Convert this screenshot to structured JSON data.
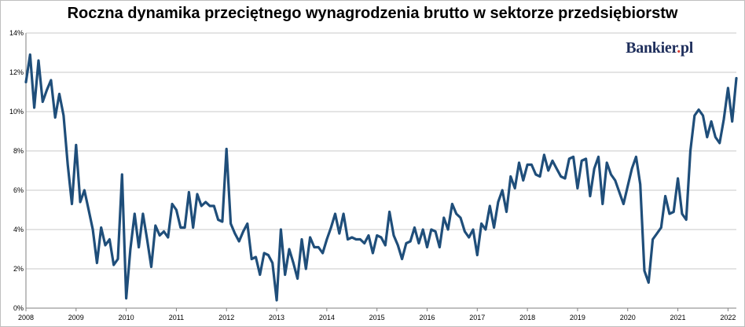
{
  "title": "Roczna dynamika przeciętnego wynagrodzenia brutto w sektorze przedsiębiorstw",
  "brand": {
    "name": "Bankier",
    "dot": ".",
    "suffix": "pl"
  },
  "colors": {
    "line": "#1f4e7a",
    "grid": "#c8c8c8",
    "axis": "#808080"
  },
  "chart_data": {
    "type": "line",
    "title": "Roczna dynamika przeciętnego wynagrodzenia brutto w sektorze przedsiębiorstw",
    "xlabel": "",
    "ylabel": "",
    "ylim": [
      0,
      14
    ],
    "xlim": [
      "2008-01",
      "2022-03"
    ],
    "y_ticks": [
      "0%",
      "2%",
      "4%",
      "6%",
      "8%",
      "10%",
      "12%",
      "14%"
    ],
    "x_ticks": [
      "2008",
      "2009",
      "2010",
      "2011",
      "2012",
      "2013",
      "2014",
      "2015",
      "2016",
      "2017",
      "2018",
      "2019",
      "2020",
      "2021",
      "2022"
    ],
    "grid": true,
    "legend": "none",
    "x_start": "2008-01",
    "frequency": "monthly",
    "series": [
      {
        "values": [
          11.5,
          12.9,
          10.2,
          12.6,
          10.5,
          11.1,
          11.6,
          9.7,
          10.9,
          9.8,
          7.3,
          5.3,
          8.3,
          5.4,
          6.0,
          5.0,
          4.0,
          2.3,
          4.1,
          3.2,
          3.5,
          2.2,
          2.5,
          6.8,
          0.5,
          3.0,
          4.8,
          3.1,
          4.8,
          3.5,
          2.1,
          4.2,
          3.7,
          3.9,
          3.6,
          5.3,
          5.0,
          4.1,
          4.1,
          5.9,
          4.1,
          5.8,
          5.2,
          5.4,
          5.2,
          5.2,
          4.5,
          4.4,
          8.1,
          4.3,
          3.8,
          3.4,
          3.9,
          4.3,
          2.5,
          2.6,
          1.7,
          2.8,
          2.7,
          2.3,
          0.4,
          4.0,
          1.7,
          3.0,
          2.3,
          1.5,
          3.5,
          2.0,
          3.6,
          3.1,
          3.1,
          2.8,
          3.5,
          4.1,
          4.8,
          3.8,
          4.8,
          3.5,
          3.6,
          3.5,
          3.5,
          3.3,
          3.7,
          2.8,
          3.7,
          3.6,
          3.2,
          4.9,
          3.7,
          3.2,
          2.5,
          3.3,
          3.4,
          4.1,
          3.3,
          4.0,
          3.1,
          4.0,
          3.9,
          3.1,
          4.6,
          4.0,
          5.3,
          4.8,
          4.6,
          3.9,
          3.6,
          4.0,
          2.7,
          4.3,
          4.0,
          5.2,
          4.1,
          5.4,
          6.0,
          4.9,
          6.7,
          6.1,
          7.4,
          6.5,
          7.3,
          7.3,
          6.8,
          6.7,
          7.8,
          7.0,
          7.5,
          7.1,
          6.7,
          6.6,
          7.6,
          7.7,
          6.1,
          7.5,
          7.6,
          5.7,
          7.1,
          7.7,
          5.3,
          7.4,
          6.8,
          6.5,
          5.9,
          5.3,
          6.2,
          7.1,
          7.7,
          6.3,
          1.9,
          1.3,
          3.5,
          3.8,
          4.1,
          5.7,
          4.8,
          4.9,
          6.6,
          4.8,
          4.5,
          8.0,
          9.8,
          10.1,
          9.8,
          8.7,
          9.5,
          8.7,
          8.4,
          9.6,
          11.2,
          9.5,
          11.7
        ]
      }
    ]
  }
}
